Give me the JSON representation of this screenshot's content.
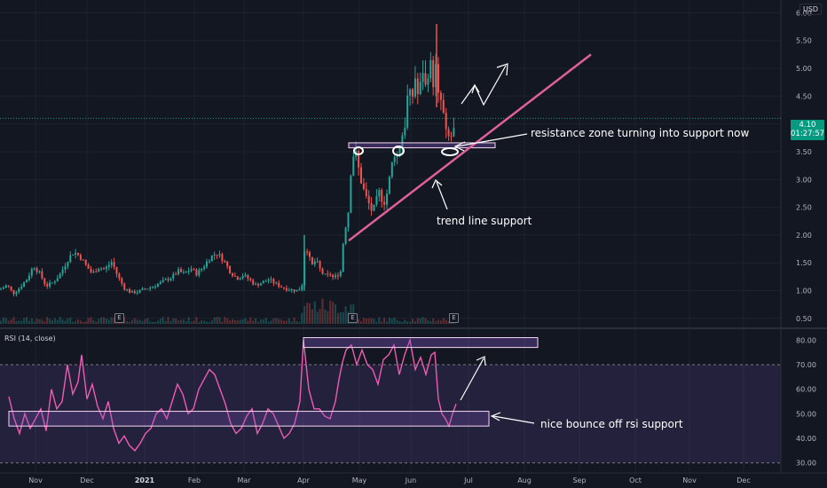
{
  "header": {
    "currency": "USD"
  },
  "price_tag": {
    "price": "4.10",
    "countdown": "01:27:57"
  },
  "rsi_panel": {
    "title": "RSI (14, close)"
  },
  "earnings_markers": [
    "E",
    "E",
    "E"
  ],
  "annotations": {
    "resistance": "resistance zone turning into support now",
    "trendline": "trend line support",
    "rsi_bounce": "nice bounce off rsi support"
  },
  "chart_data": [
    {
      "type": "candlestick",
      "title": "",
      "y_axis_ticks": [
        6.0,
        5.5,
        5.0,
        4.5,
        4.0,
        3.5,
        3.0,
        2.5,
        2.0,
        1.5,
        1.0,
        0.5
      ],
      "ylim": [
        0.45,
        6.15
      ],
      "x_tick_labels": [
        "Nov",
        "Dec",
        "2021",
        "Feb",
        "Mar",
        "Apr",
        "May",
        "Jun",
        "Jul",
        "Aug",
        "Sep",
        "Oct",
        "Nov",
        "Dec"
      ],
      "last_price": 4.1,
      "close_series": {
        "name": "",
        "points": [
          [
            0,
            1.02
          ],
          [
            8,
            1.1
          ],
          [
            15,
            0.95
          ],
          [
            22,
            1.05
          ],
          [
            30,
            1.2
          ],
          [
            38,
            1.45
          ],
          [
            45,
            1.3
          ],
          [
            52,
            1.08
          ],
          [
            60,
            1.15
          ],
          [
            68,
            1.3
          ],
          [
            76,
            1.55
          ],
          [
            83,
            1.7
          ],
          [
            90,
            1.62
          ],
          [
            97,
            1.45
          ],
          [
            104,
            1.3
          ],
          [
            111,
            1.42
          ],
          [
            118,
            1.38
          ],
          [
            126,
            1.52
          ],
          [
            133,
            1.25
          ],
          [
            140,
            1.05
          ],
          [
            148,
            0.96
          ],
          [
            156,
            0.98
          ],
          [
            163,
            1.03
          ],
          [
            170,
            1.06
          ],
          [
            178,
            1.12
          ],
          [
            186,
            1.18
          ],
          [
            194,
            1.25
          ],
          [
            201,
            1.35
          ],
          [
            208,
            1.3
          ],
          [
            215,
            1.4
          ],
          [
            222,
            1.3
          ],
          [
            230,
            1.45
          ],
          [
            237,
            1.6
          ],
          [
            244,
            1.68
          ],
          [
            252,
            1.55
          ],
          [
            259,
            1.35
          ],
          [
            267,
            1.22
          ],
          [
            274,
            1.28
          ],
          [
            281,
            1.2
          ],
          [
            288,
            1.1
          ],
          [
            296,
            1.15
          ],
          [
            303,
            1.2
          ],
          [
            311,
            1.12
          ],
          [
            318,
            1.06
          ],
          [
            326,
            1.02
          ],
          [
            334,
            1.0
          ],
          [
            340,
            1.05
          ],
          [
            344,
            1.9
          ],
          [
            348,
            1.6
          ],
          [
            352,
            1.45
          ],
          [
            356,
            1.55
          ],
          [
            360,
            1.4
          ],
          [
            364,
            1.3
          ],
          [
            368,
            1.25
          ],
          [
            372,
            1.3
          ],
          [
            376,
            1.22
          ],
          [
            380,
            1.28
          ],
          [
            384,
            1.35
          ],
          [
            388,
            2.1
          ],
          [
            392,
            2.3
          ],
          [
            396,
            3.3
          ],
          [
            400,
            3.55
          ],
          [
            404,
            3.2
          ],
          [
            408,
            2.9
          ],
          [
            412,
            2.7
          ],
          [
            416,
            2.55
          ],
          [
            420,
            2.4
          ],
          [
            424,
            2.6
          ],
          [
            428,
            2.8
          ],
          [
            432,
            2.55
          ],
          [
            436,
            2.75
          ],
          [
            440,
            3.1
          ],
          [
            444,
            3.5
          ],
          [
            448,
            3.4
          ],
          [
            452,
            3.75
          ],
          [
            456,
            3.95
          ],
          [
            460,
            4.6
          ],
          [
            464,
            4.4
          ],
          [
            468,
            4.85
          ],
          [
            472,
            4.4
          ],
          [
            476,
            5.05
          ],
          [
            480,
            4.6
          ],
          [
            484,
            5.2
          ],
          [
            488,
            4.7
          ],
          [
            490,
            5.35
          ],
          [
            492,
            4.7
          ],
          [
            495,
            4.35
          ],
          [
            498,
            4.45
          ],
          [
            501,
            3.95
          ],
          [
            504,
            3.7
          ],
          [
            507,
            3.8
          ],
          [
            510,
            3.75
          ],
          [
            514,
            4.1
          ]
        ]
      },
      "drawings": {
        "resistance_zone": {
          "price_low": 3.57,
          "price_high": 3.66
        },
        "trend_line": {
          "from": 1.9,
          "to": 5.25
        }
      }
    },
    {
      "type": "line",
      "title": "RSI (14, close)",
      "y_axis_ticks": [
        80.0,
        70.0,
        60.0,
        50.0,
        40.0,
        30.0
      ],
      "ylim": [
        27,
        83
      ],
      "upper_band": 70,
      "lower_band": 30,
      "series": [
        {
          "name": "RSI",
          "points": [
            [
              10,
              57
            ],
            [
              16,
              48
            ],
            [
              22,
              42
            ],
            [
              28,
              50
            ],
            [
              34,
              44
            ],
            [
              40,
              48
            ],
            [
              46,
              52
            ],
            [
              52,
              43
            ],
            [
              58,
              60
            ],
            [
              64,
              52
            ],
            [
              70,
              55
            ],
            [
              76,
              70
            ],
            [
              82,
              58
            ],
            [
              88,
              63
            ],
            [
              92,
              74
            ],
            [
              98,
              56
            ],
            [
              104,
              62
            ],
            [
              110,
              53
            ],
            [
              116,
              48
            ],
            [
              122,
              55
            ],
            [
              128,
              44
            ],
            [
              134,
              38
            ],
            [
              140,
              41
            ],
            [
              146,
              37
            ],
            [
              152,
              35
            ],
            [
              158,
              38
            ],
            [
              164,
              42
            ],
            [
              170,
              44
            ],
            [
              176,
              50
            ],
            [
              182,
              52
            ],
            [
              188,
              48
            ],
            [
              194,
              55
            ],
            [
              200,
              62
            ],
            [
              206,
              58
            ],
            [
              212,
              50
            ],
            [
              218,
              52
            ],
            [
              224,
              60
            ],
            [
              230,
              64
            ],
            [
              236,
              68
            ],
            [
              242,
              66
            ],
            [
              248,
              60
            ],
            [
              254,
              54
            ],
            [
              260,
              46
            ],
            [
              266,
              42
            ],
            [
              272,
              44
            ],
            [
              278,
              49
            ],
            [
              284,
              52
            ],
            [
              290,
              42
            ],
            [
              296,
              46
            ],
            [
              302,
              52
            ],
            [
              308,
              50
            ],
            [
              314,
              45
            ],
            [
              320,
              40
            ],
            [
              326,
              42
            ],
            [
              332,
              46
            ],
            [
              338,
              55
            ],
            [
              342,
              80
            ],
            [
              348,
              60
            ],
            [
              354,
              52
            ],
            [
              360,
              52
            ],
            [
              366,
              49
            ],
            [
              372,
              48
            ],
            [
              378,
              55
            ],
            [
              382,
              64
            ],
            [
              386,
              71
            ],
            [
              390,
              76
            ],
            [
              396,
              78
            ],
            [
              402,
              70
            ],
            [
              408,
              76
            ],
            [
              414,
              70
            ],
            [
              420,
              68
            ],
            [
              426,
              62
            ],
            [
              432,
              72
            ],
            [
              438,
              74
            ],
            [
              444,
              78
            ],
            [
              450,
              66
            ],
            [
              456,
              74
            ],
            [
              462,
              80
            ],
            [
              468,
              68
            ],
            [
              474,
              73
            ],
            [
              480,
              66
            ],
            [
              486,
              74
            ],
            [
              490,
              75
            ],
            [
              494,
              56
            ],
            [
              498,
              50
            ],
            [
              502,
              48
            ],
            [
              506,
              45
            ],
            [
              510,
              50
            ],
            [
              514,
              54
            ]
          ]
        }
      ],
      "drawings": {
        "top_box": {
          "value_low": 77,
          "value_high": 81
        },
        "support_box": {
          "value_low": 45,
          "value_high": 51
        }
      }
    }
  ]
}
